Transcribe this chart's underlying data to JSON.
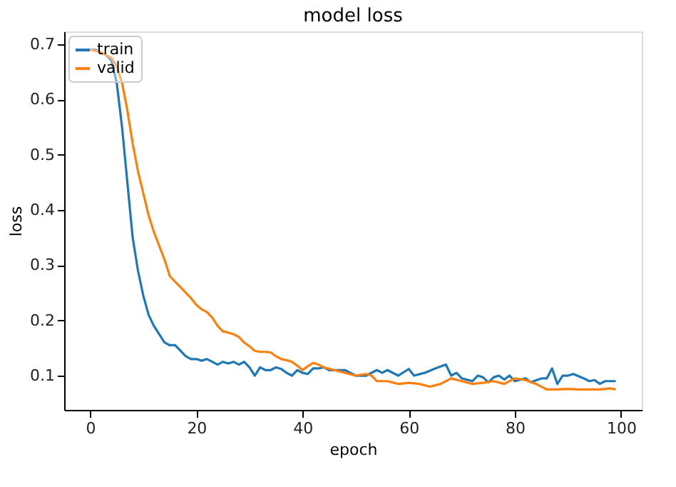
{
  "chart_data": {
    "type": "line",
    "title": "model loss",
    "xlabel": "epoch",
    "ylabel": "loss",
    "xlim": [
      -4.9,
      103.9
    ],
    "ylim": [
      0.038,
      0.723
    ],
    "xticks": [
      0,
      20,
      40,
      60,
      80,
      100
    ],
    "yticks": [
      0.1,
      0.2,
      0.3,
      0.4,
      0.5,
      0.6,
      0.7
    ],
    "grid": false,
    "legend": "top left",
    "marker": "none",
    "line_style": "solid",
    "series": [
      {
        "name": "train",
        "color": "#1f77b4",
        "x": [
          0,
          1,
          2,
          3,
          4,
          5,
          6,
          7,
          8,
          9,
          10,
          11,
          12,
          13,
          14,
          15,
          16,
          17,
          18,
          19,
          20,
          21,
          22,
          23,
          24,
          25,
          26,
          27,
          28,
          29,
          30,
          31,
          32,
          33,
          34,
          35,
          36,
          37,
          38,
          39,
          40,
          41,
          42,
          43,
          44,
          45,
          46,
          48,
          50,
          52,
          54,
          55,
          56,
          58,
          60,
          61,
          63,
          65,
          67,
          68,
          69,
          70,
          72,
          73,
          74,
          75,
          76,
          77,
          78,
          79,
          80,
          82,
          83,
          85,
          86,
          87,
          88,
          89,
          90,
          91,
          93,
          94,
          95,
          96,
          97,
          98,
          99
        ],
        "values": [
          0.69,
          0.69,
          0.685,
          0.68,
          0.67,
          0.63,
          0.55,
          0.45,
          0.35,
          0.29,
          0.245,
          0.21,
          0.19,
          0.175,
          0.16,
          0.155,
          0.155,
          0.145,
          0.135,
          0.13,
          0.13,
          0.127,
          0.13,
          0.125,
          0.12,
          0.125,
          0.122,
          0.125,
          0.12,
          0.125,
          0.115,
          0.1,
          0.115,
          0.11,
          0.11,
          0.115,
          0.112,
          0.105,
          0.1,
          0.11,
          0.105,
          0.103,
          0.113,
          0.113,
          0.115,
          0.11,
          0.11,
          0.11,
          0.1,
          0.1,
          0.11,
          0.105,
          0.11,
          0.1,
          0.112,
          0.1,
          0.105,
          0.113,
          0.12,
          0.1,
          0.105,
          0.095,
          0.09,
          0.1,
          0.097,
          0.088,
          0.097,
          0.1,
          0.093,
          0.1,
          0.09,
          0.095,
          0.088,
          0.095,
          0.095,
          0.113,
          0.085,
          0.1,
          0.1,
          0.103,
          0.095,
          0.09,
          0.092,
          0.085,
          0.09,
          0.09,
          0.09
        ]
      },
      {
        "name": "valid",
        "color": "#ff7f0e",
        "x": [
          0,
          2,
          4,
          5,
          6,
          7,
          8,
          9,
          10,
          11,
          12,
          13,
          14,
          15,
          16,
          17,
          18,
          19,
          20,
          21,
          22,
          23,
          24,
          25,
          26,
          27,
          28,
          29,
          30,
          31,
          32,
          33,
          34,
          35,
          36,
          37,
          38,
          39,
          40,
          41,
          42,
          43,
          44,
          46,
          48,
          50,
          52,
          53,
          54,
          56,
          58,
          60,
          62,
          64,
          66,
          68,
          70,
          72,
          74,
          76,
          78,
          80,
          82,
          84,
          86,
          88,
          90,
          92,
          94,
          96,
          98,
          99
        ],
        "values": [
          0.69,
          0.685,
          0.675,
          0.66,
          0.63,
          0.58,
          0.52,
          0.47,
          0.43,
          0.39,
          0.36,
          0.335,
          0.31,
          0.28,
          0.27,
          0.26,
          0.25,
          0.24,
          0.228,
          0.22,
          0.215,
          0.205,
          0.19,
          0.18,
          0.178,
          0.175,
          0.17,
          0.16,
          0.153,
          0.145,
          0.143,
          0.143,
          0.142,
          0.135,
          0.13,
          0.128,
          0.125,
          0.118,
          0.11,
          0.117,
          0.123,
          0.12,
          0.115,
          0.11,
          0.105,
          0.1,
          0.103,
          0.1,
          0.09,
          0.09,
          0.085,
          0.087,
          0.085,
          0.08,
          0.085,
          0.095,
          0.09,
          0.085,
          0.087,
          0.09,
          0.085,
          0.095,
          0.092,
          0.085,
          0.075,
          0.075,
          0.076,
          0.075,
          0.075,
          0.075,
          0.077,
          0.075
        ]
      }
    ]
  }
}
